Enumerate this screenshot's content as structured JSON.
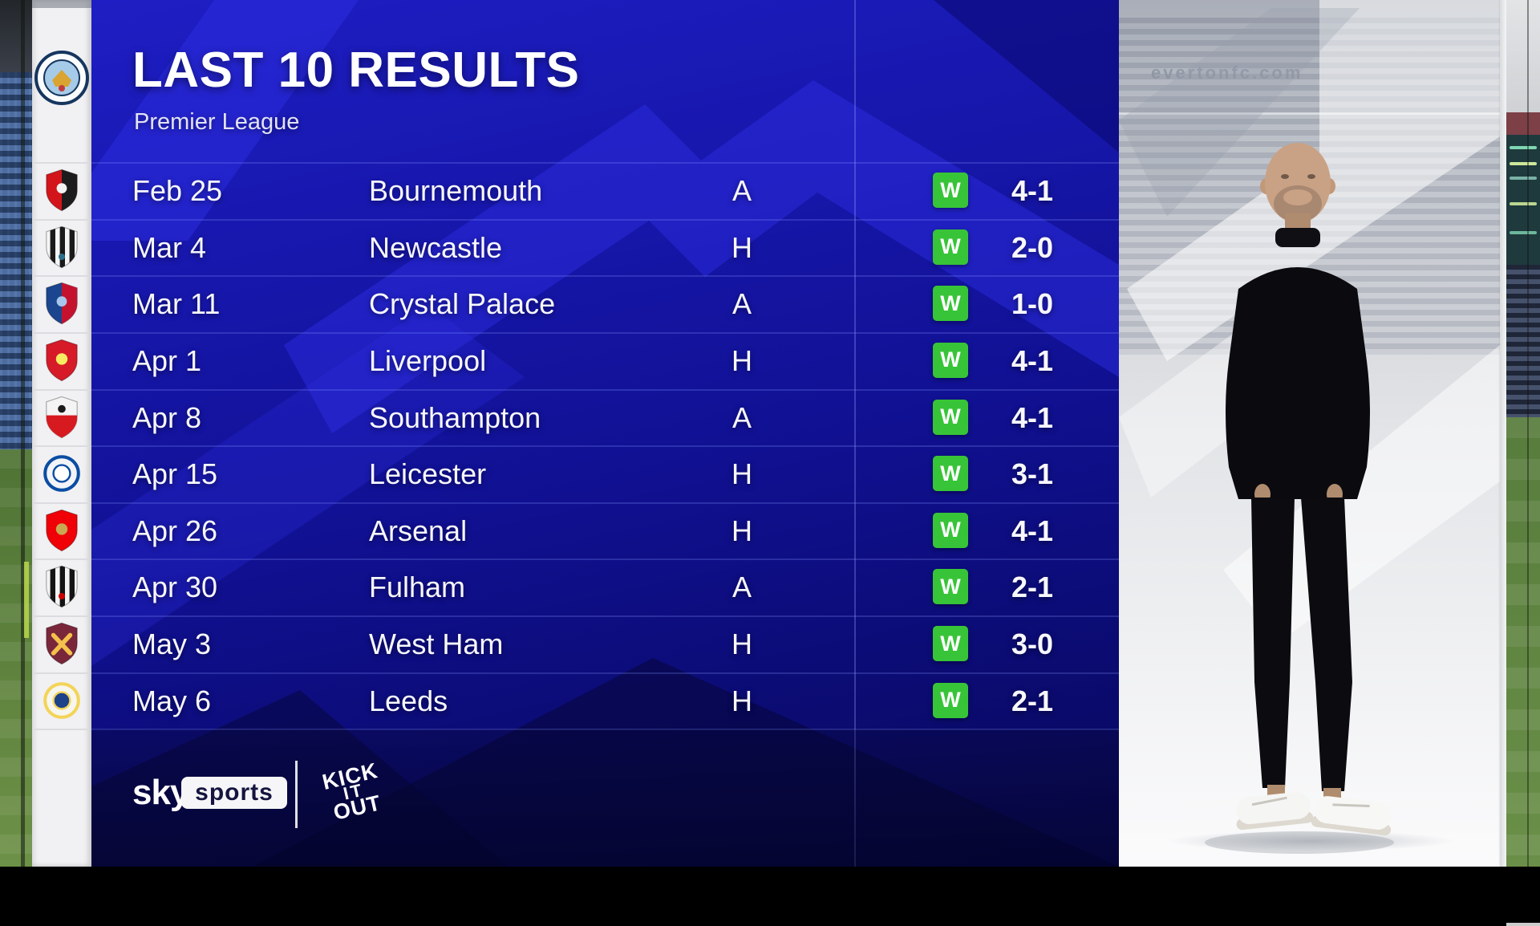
{
  "header": {
    "title": "LAST 10 RESULTS",
    "subtitle": "Premier League",
    "team": "Manchester City"
  },
  "results": [
    {
      "date": "Feb 25",
      "opponent": "Bournemouth",
      "venue": "A",
      "outcome": "W",
      "score": "4-1",
      "badge": {
        "id": "bournemouth",
        "shape": "shield",
        "split": "v",
        "colors": [
          "#d3151b",
          "#1c1c1c",
          "#f2f2f2"
        ]
      }
    },
    {
      "date": "Mar 4",
      "opponent": "Newcastle",
      "venue": "H",
      "outcome": "W",
      "score": "2-0",
      "badge": {
        "id": "newcastle",
        "shape": "shield",
        "split": "stripes",
        "colors": [
          "#f5f5f5",
          "#1a1a1a",
          "#2b6f8c"
        ]
      }
    },
    {
      "date": "Mar 11",
      "opponent": "Crystal Palace",
      "venue": "A",
      "outcome": "W",
      "score": "1-0",
      "badge": {
        "id": "crystal-palace",
        "shape": "shield",
        "split": "v",
        "colors": [
          "#1b458f",
          "#c4122e",
          "#a7c6ed"
        ]
      }
    },
    {
      "date": "Apr 1",
      "opponent": "Liverpool",
      "venue": "H",
      "outcome": "W",
      "score": "4-1",
      "badge": {
        "id": "liverpool",
        "shape": "shield",
        "split": "none",
        "colors": [
          "#d61a28",
          "#f6eb61",
          "#ffffff"
        ]
      }
    },
    {
      "date": "Apr 8",
      "opponent": "Southampton",
      "venue": "A",
      "outcome": "W",
      "score": "4-1",
      "badge": {
        "id": "southampton",
        "shape": "shield",
        "split": "h",
        "colors": [
          "#f4f4f4",
          "#d71920",
          "#1a1a1a"
        ]
      }
    },
    {
      "date": "Apr 15",
      "opponent": "Leicester",
      "venue": "H",
      "outcome": "W",
      "score": "3-1",
      "badge": {
        "id": "leicester",
        "shape": "circle",
        "split": "none",
        "colors": [
          "#f2f4f8",
          "#0a4da3",
          "#ffffff"
        ]
      }
    },
    {
      "date": "Apr 26",
      "opponent": "Arsenal",
      "venue": "H",
      "outcome": "W",
      "score": "4-1",
      "badge": {
        "id": "arsenal",
        "shape": "shield",
        "split": "none",
        "colors": [
          "#ef0107",
          "#c8a951",
          "#ffffff"
        ]
      }
    },
    {
      "date": "Apr 30",
      "opponent": "Fulham",
      "venue": "A",
      "outcome": "W",
      "score": "2-1",
      "badge": {
        "id": "fulham",
        "shape": "shield",
        "split": "stripes",
        "colors": [
          "#f4f4f4",
          "#141414",
          "#cc0000"
        ]
      }
    },
    {
      "date": "May 3",
      "opponent": "West Ham",
      "venue": "H",
      "outcome": "W",
      "score": "3-0",
      "badge": {
        "id": "west-ham",
        "shape": "shield",
        "split": "cross",
        "colors": [
          "#7a263a",
          "#f3c14b",
          "#9bd3f5"
        ]
      }
    },
    {
      "date": "May 6",
      "opponent": "Leeds",
      "venue": "H",
      "outcome": "W",
      "score": "2-1",
      "badge": {
        "id": "leeds",
        "shape": "circle",
        "split": "none",
        "colors": [
          "#f7f6ee",
          "#f3d459",
          "#1d428a"
        ]
      }
    }
  ],
  "footer": {
    "sky_logo": {
      "sky": "sky",
      "sports": "sports"
    },
    "kick_it_out": {
      "line1": "KICK",
      "line2": "IT",
      "line3": "OUT"
    }
  },
  "photo_panel": {
    "stand_text": "evertonfc.com"
  },
  "colors": {
    "panel_base": "#12129c",
    "panel_light": "#2b2bdf",
    "panel_dark": "#050538",
    "win_green": "#38c438",
    "row_text": "#f7f7fc",
    "strip_white": "#f1f1f3",
    "sky_navy": "#15153f"
  }
}
